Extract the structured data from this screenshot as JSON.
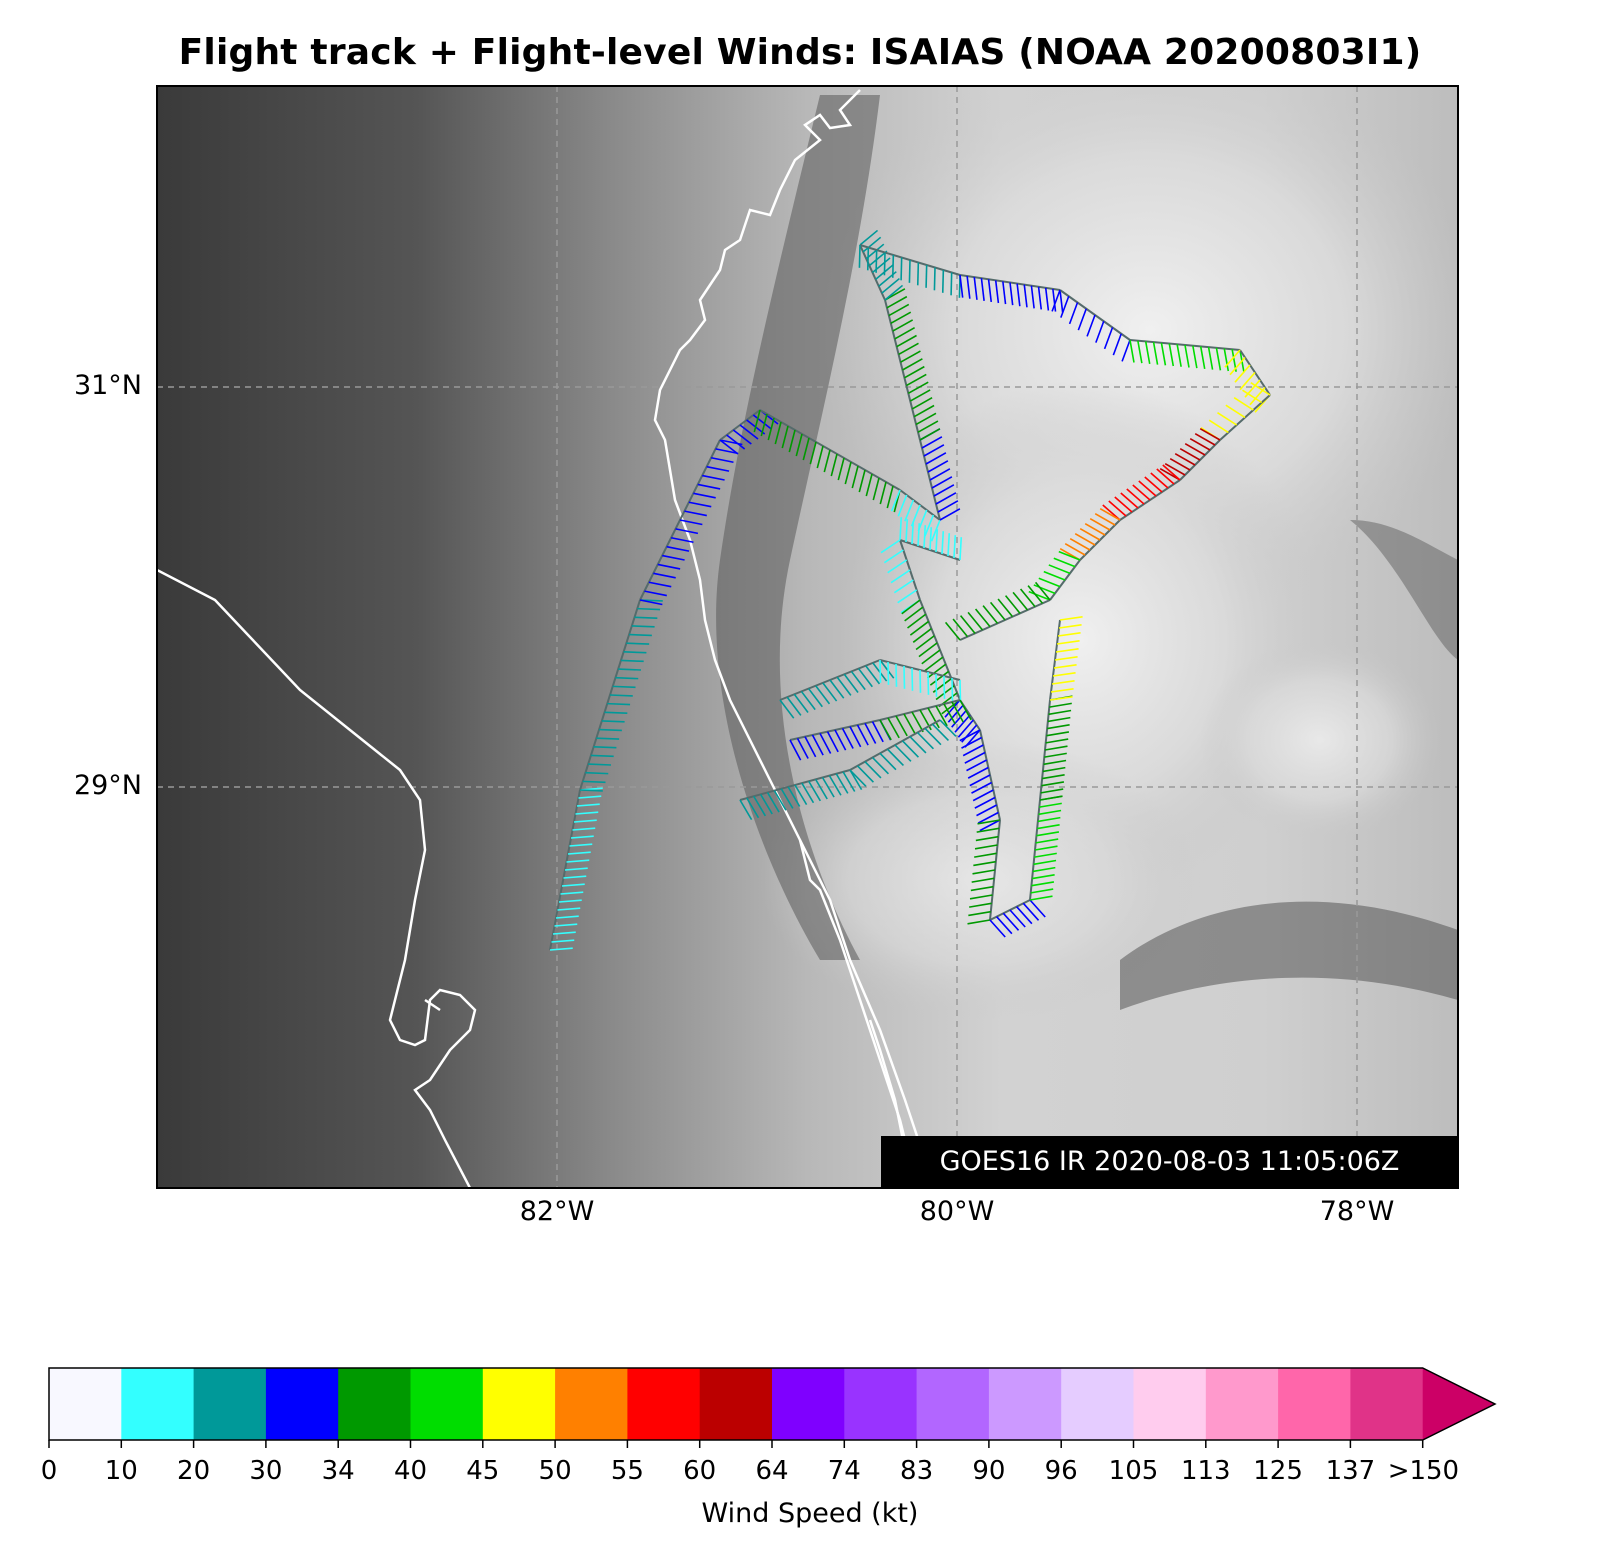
{
  "title": "Flight track + Flight-level Winds: ISAIAS (NOAA 20200803I1)",
  "image_stamp": "GOES16 IR 2020-08-03 11:05:06Z",
  "lat_labels": [
    "31°N",
    "29°N"
  ],
  "lon_labels": [
    "82°W",
    "80°W",
    "78°W"
  ],
  "colorbar": {
    "label": "Wind Speed (kt)",
    "ticks": [
      "0",
      "10",
      "20",
      "30",
      "34",
      "40",
      "45",
      "50",
      "55",
      "60",
      "64",
      "74",
      "83",
      "90",
      "96",
      "105",
      "113",
      "125",
      "137",
      ">150"
    ],
    "colors": [
      "#f8f8ff",
      "#33ffff",
      "#009999",
      "#0000ff",
      "#009900",
      "#00dd00",
      "#ffff00",
      "#ff8000",
      "#ff0000",
      "#bb0000",
      "#7f00ff",
      "#9933ff",
      "#b266ff",
      "#cc99ff",
      "#e5ccff",
      "#ffccee",
      "#ff99cc",
      "#ff66aa",
      "#e03388",
      "#cc0066"
    ]
  },
  "chart_data": {
    "type": "map",
    "region": {
      "lon_range": [
        "84°W",
        "77.5°W"
      ],
      "lat_range": [
        "26.9°N",
        "32.5°N"
      ]
    },
    "background": "GOES16 IR grayscale satellite image",
    "gridlines": true,
    "wind_speed_categories_kt": [
      [
        0,
        10
      ],
      [
        10,
        20
      ],
      [
        20,
        30
      ],
      [
        30,
        34
      ],
      [
        34,
        40
      ],
      [
        40,
        45
      ],
      [
        45,
        50
      ],
      [
        50,
        55
      ],
      [
        55,
        60
      ],
      [
        60,
        64
      ],
      [
        64,
        74
      ],
      [
        74,
        83
      ],
      [
        83,
        90
      ],
      [
        90,
        96
      ],
      [
        96,
        105
      ],
      [
        105,
        113
      ],
      [
        113,
        125
      ],
      [
        125,
        137
      ],
      [
        137,
        150
      ],
      [
        150,
        null
      ]
    ]
  }
}
